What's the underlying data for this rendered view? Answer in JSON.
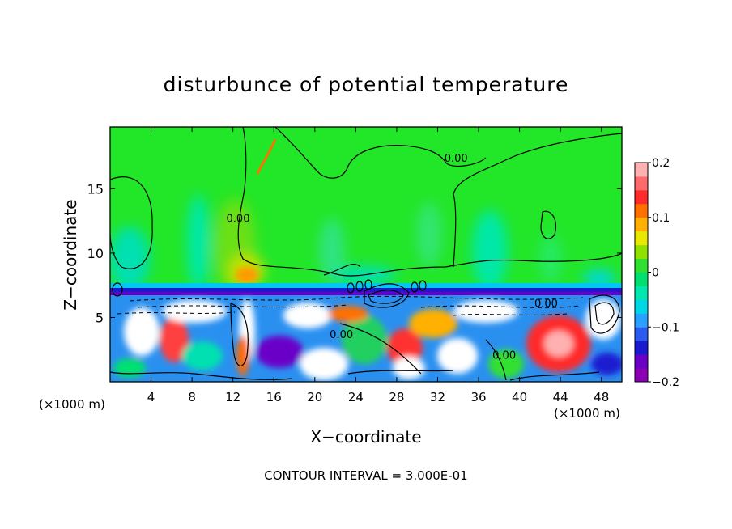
{
  "chart_data": {
    "type": "heatmap",
    "title": "disturbunce of potential temperature",
    "xlabel": "X−coordinate",
    "ylabel": "Z−coordinate",
    "x_unit_left": "(×1000 m)",
    "x_unit_right": "(×1000 m)",
    "x_ticks": [
      4,
      8,
      12,
      16,
      20,
      24,
      28,
      32,
      36,
      40,
      44,
      48
    ],
    "y_ticks": [
      5,
      10,
      15
    ],
    "xlim": [
      0,
      50
    ],
    "ylim": [
      0,
      19.8
    ],
    "footer": "CONTOUR INTERVAL = 3.000E-01",
    "colorbar": {
      "tick_labels": [
        "0.2",
        "0.1",
        "0",
        "−0.1",
        "−0.2"
      ],
      "tick_values": [
        0.2,
        0.1,
        0,
        -0.1,
        -0.2
      ],
      "range": [
        -0.2,
        0.2
      ],
      "colors": [
        "#8b00b4",
        "#6a00c8",
        "#1a1ad0",
        "#2a5af0",
        "#2aa0ff",
        "#00d8e8",
        "#00e8b0",
        "#00e070",
        "#30e030",
        "#90e000",
        "#e8e800",
        "#ffb000",
        "#ff7000",
        "#ff2a2a",
        "#ff6a6a",
        "#ffb0b0"
      ]
    },
    "contour_labels": [
      {
        "text": "0.00",
        "x": 33.8,
        "z": 17.1
      },
      {
        "text": "0.00",
        "x": 12.5,
        "z": 12.4
      },
      {
        "text": "0.00",
        "x": 42.6,
        "z": 5.8
      },
      {
        "text": "0.00",
        "x": 22.6,
        "z": 3.4
      },
      {
        "text": "0.00",
        "x": 38.5,
        "z": 1.8
      }
    ]
  }
}
